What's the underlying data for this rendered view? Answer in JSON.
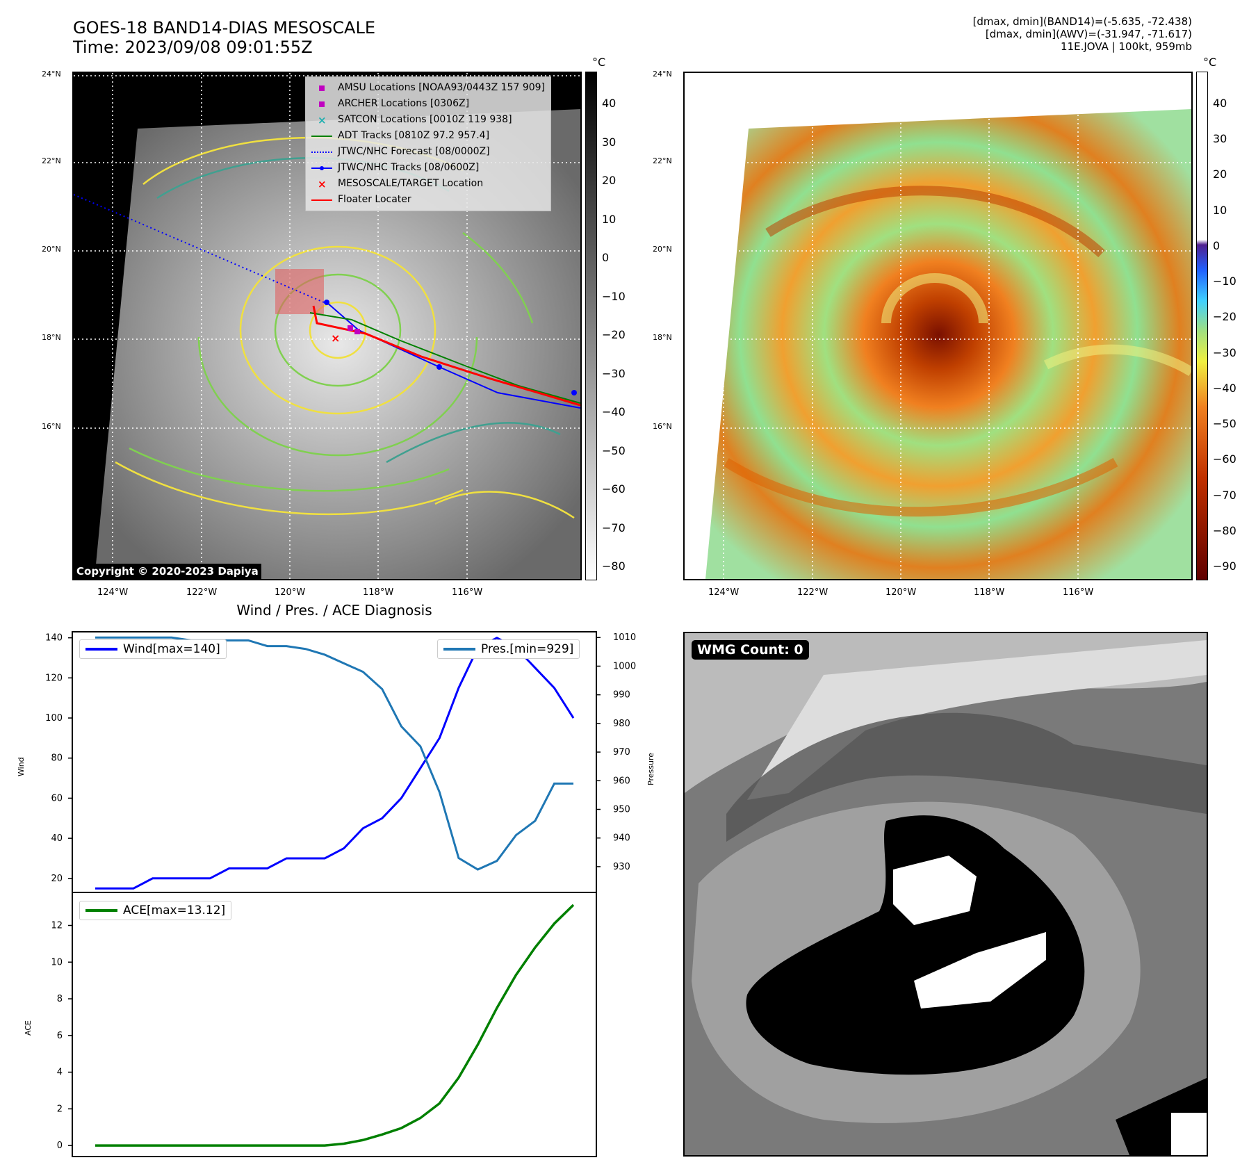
{
  "header": {
    "title_line1": "GOES-18 BAND14-DIAS MESOSCALE",
    "title_line2": "Time: 2023/09/08 09:01:55Z",
    "info_line1": "[dmax, dmin](BAND14)=(-5.635, -72.438)",
    "info_line2": "[dmax, dmin](AWV)=(-31.947, -71.617)",
    "info_line3": "11E.JOVA | 100kt, 959mb"
  },
  "map_axes": {
    "lat_labels": [
      "24°N",
      "22°N",
      "20°N",
      "18°N",
      "16°N"
    ],
    "lon_labels": [
      "124°W",
      "122°W",
      "120°W",
      "118°W",
      "116°W"
    ]
  },
  "ir_panel": {
    "legend": [
      {
        "label": "AMSU Locations [NOAA93/0443Z 157 909]",
        "symbol": "square",
        "color": "#c000c0"
      },
      {
        "label": "ARCHER Locations [0306Z]",
        "symbol": "square",
        "color": "#c000c0"
      },
      {
        "label": "SATCON Locations [0010Z 119 938]",
        "symbol": "x",
        "color": "#20b0b0"
      },
      {
        "label": "ADT Tracks [0810Z 97.2 957.4]",
        "symbol": "line",
        "color": "#008000"
      },
      {
        "label": "JTWC/NHC Forecast [08/0000Z]",
        "symbol": "dotted",
        "color": "#0000ff"
      },
      {
        "label": "JTWC/NHC Tracks [08/0600Z]",
        "symbol": "line-dot",
        "color": "#0000ff"
      },
      {
        "label": "MESOSCALE/TARGET Location",
        "symbol": "x",
        "color": "#ff0000"
      },
      {
        "label": "Floater Locater",
        "symbol": "line",
        "color": "#ff0000"
      }
    ],
    "copyright": "Copyright © 2020-2023 Dapiya",
    "colorbar_unit": "°C",
    "colorbar_ticks": [
      "40",
      "30",
      "20",
      "10",
      "0",
      "−10",
      "−20",
      "−30",
      "−40",
      "−50",
      "−60",
      "−70",
      "−80"
    ]
  },
  "wv_panel": {
    "colorbar_unit": "°C",
    "colorbar_ticks": [
      "40",
      "30",
      "20",
      "10",
      "0",
      "−10",
      "−20",
      "−30",
      "−40",
      "−50",
      "−60",
      "−70",
      "−80",
      "−90"
    ]
  },
  "wmg_panel": {
    "label": "WMG Count: 0"
  },
  "chart_data": [
    {
      "type": "line",
      "title": "Wind / Pres. / ACE Diagnosis",
      "x": [
        0,
        1,
        2,
        3,
        4,
        5,
        6,
        7,
        8,
        9,
        10,
        11,
        12,
        13,
        14,
        15,
        16,
        17,
        18,
        19,
        20,
        21,
        22,
        23,
        24,
        25
      ],
      "ylabel_left": "Wind",
      "ylabel_right": "Pressure",
      "ylim_left": [
        13,
        143
      ],
      "ylim_right": [
        921,
        1012
      ],
      "yticks_left": [
        20,
        40,
        60,
        80,
        100,
        120,
        140
      ],
      "yticks_right": [
        930,
        940,
        950,
        960,
        970,
        980,
        990,
        1000,
        1010
      ],
      "series": [
        {
          "name": "Wind[max=140]",
          "axis": "left",
          "color": "#0000ff",
          "values": [
            15,
            15,
            15,
            20,
            20,
            20,
            20,
            25,
            25,
            25,
            30,
            30,
            30,
            35,
            45,
            50,
            60,
            75,
            90,
            115,
            135,
            140,
            135,
            125,
            115,
            100
          ]
        },
        {
          "name": "Pres.[min=929]",
          "axis": "right",
          "color": "#1f77b4",
          "values": [
            1010,
            1010,
            1010,
            1010,
            1010,
            1009,
            1009,
            1009,
            1009,
            1007,
            1007,
            1006,
            1004,
            1001,
            998,
            992,
            979,
            972,
            956,
            933,
            929,
            932,
            941,
            946,
            959,
            959
          ]
        }
      ]
    },
    {
      "type": "line",
      "x": [
        0,
        1,
        2,
        3,
        4,
        5,
        6,
        7,
        8,
        9,
        10,
        11,
        12,
        13,
        14,
        15,
        16,
        17,
        18,
        19,
        20,
        21,
        22,
        23,
        24,
        25
      ],
      "ylabel": "ACE",
      "ylim": [
        -0.6,
        13.8
      ],
      "yticks": [
        0,
        2,
        4,
        6,
        8,
        10,
        12
      ],
      "series": [
        {
          "name": "ACE[max=13.12]",
          "color": "#008000",
          "values": [
            0,
            0,
            0,
            0,
            0,
            0,
            0,
            0,
            0,
            0,
            0,
            0,
            0,
            0.1,
            0.3,
            0.6,
            0.95,
            1.5,
            2.3,
            3.7,
            5.5,
            7.5,
            9.3,
            10.8,
            12.1,
            13.12
          ]
        }
      ]
    }
  ]
}
